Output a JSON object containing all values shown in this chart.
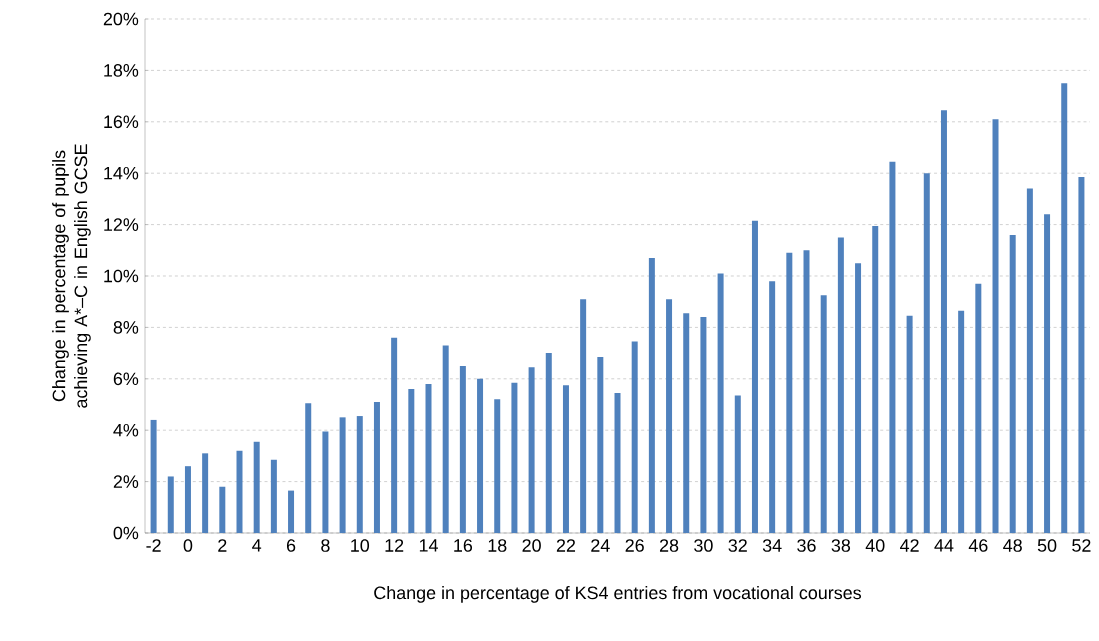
{
  "chart_data": {
    "type": "bar",
    "xlabel": "Change in percentage of KS4 entries from vocational courses",
    "ylabel": "Change in percentage of pupils achieving A*–C in English GCSE",
    "categories": [
      "-2",
      null,
      "0",
      null,
      "2",
      null,
      "4",
      null,
      "6",
      null,
      "8",
      null,
      "10",
      null,
      "12",
      null,
      "14",
      null,
      "16",
      null,
      "18",
      null,
      "20",
      null,
      "22",
      null,
      "24",
      null,
      "26",
      null,
      "28",
      null,
      "30",
      null,
      "32",
      null,
      "34",
      null,
      "36",
      null,
      "38",
      null,
      "40",
      null,
      "42",
      null,
      "44",
      null,
      "46",
      null,
      "48",
      null,
      "50",
      null,
      "52"
    ],
    "values": [
      4.4,
      2.2,
      2.6,
      3.1,
      1.8,
      3.2,
      3.55,
      2.85,
      1.65,
      5.05,
      3.95,
      4.5,
      4.55,
      5.1,
      7.6,
      5.6,
      5.8,
      7.3,
      6.5,
      6.0,
      5.2,
      5.85,
      6.45,
      7.0,
      5.75,
      9.1,
      6.85,
      5.45,
      7.45,
      10.7,
      9.1,
      8.55,
      8.4,
      10.1,
      5.35,
      12.15,
      9.8,
      10.9,
      11.0,
      9.25,
      11.5,
      10.5,
      11.95,
      14.45,
      8.45,
      14.0,
      16.45,
      8.65,
      9.7,
      16.1,
      11.6,
      13.4,
      12.4,
      17.5,
      13.85
    ],
    "color": "#4f81bd",
    "ylim": [
      0,
      20
    ],
    "yticks": [
      {
        "value": 0,
        "label": "0%"
      },
      {
        "value": 2,
        "label": "2%"
      },
      {
        "value": 4,
        "label": "4%"
      },
      {
        "value": 6,
        "label": "6%"
      },
      {
        "value": 8,
        "label": "8%"
      },
      {
        "value": 10,
        "label": "10%"
      },
      {
        "value": 12,
        "label": "12%"
      },
      {
        "value": 14,
        "label": "14%"
      },
      {
        "value": 16,
        "label": "16%"
      },
      {
        "value": 18,
        "label": "18%"
      },
      {
        "value": 20,
        "label": "20%"
      }
    ],
    "grid": "y"
  }
}
